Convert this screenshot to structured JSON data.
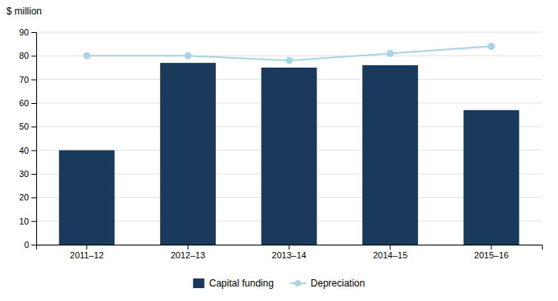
{
  "chart_data": {
    "type": "bar",
    "ylabel": "$ million",
    "categories": [
      "2011–12",
      "2012–13",
      "2013–14",
      "2014–15",
      "2015–16"
    ],
    "series": [
      {
        "name": "Capital funding",
        "type": "bar",
        "color": "#1a3a5c",
        "values": [
          40,
          77,
          75,
          76,
          57
        ]
      },
      {
        "name": "Depreciation",
        "type": "line",
        "color": "#a8d4e6",
        "marker": "circle",
        "values": [
          80,
          80,
          78,
          81,
          84
        ]
      }
    ],
    "ylim": [
      0,
      90
    ],
    "yticks": [
      0,
      10,
      20,
      30,
      40,
      50,
      60,
      70,
      80,
      90
    ],
    "grid": true,
    "legend": "bottom"
  }
}
